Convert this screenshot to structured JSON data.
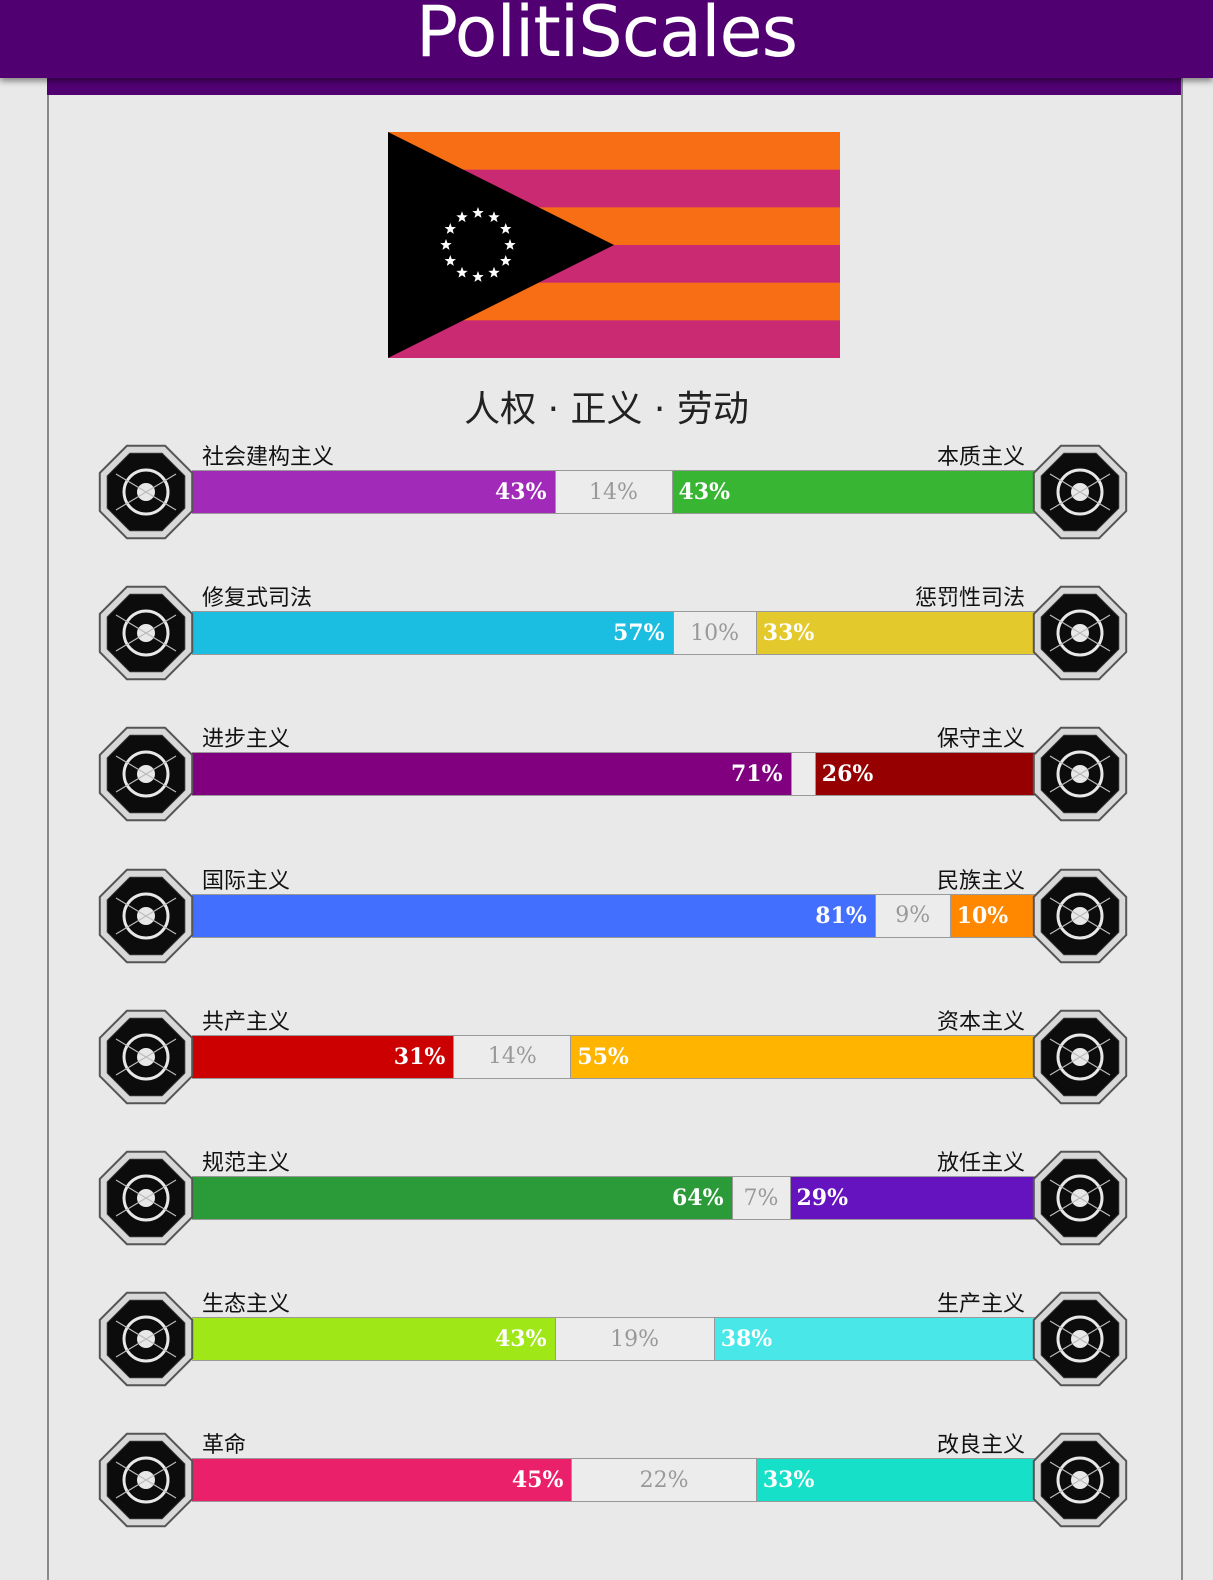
{
  "header": {
    "title": "PolitiScales"
  },
  "flag": {
    "stripe_colors": [
      "#f86e14",
      "#c92a71",
      "#f86e14",
      "#c92a71",
      "#f86e14",
      "#c92a71"
    ],
    "triangle_color": "#000000",
    "star_color": "#ffffff",
    "star_count": 12
  },
  "motto": "人权 · 正义 · 劳动",
  "axes": [
    {
      "left_label": "社会建构主义",
      "right_label": "本质主义",
      "left_pct": 43,
      "mid_pct": 14,
      "right_pct": 43,
      "left_text": "43%",
      "mid_text": "14%",
      "right_text": "43%",
      "left_color": "#a22ab9",
      "right_color": "#38b533",
      "left_icon": "eye-icon",
      "right_icon": "flower-icon"
    },
    {
      "left_label": "修复式司法",
      "right_label": "惩罚性司法",
      "left_pct": 57,
      "mid_pct": 10,
      "right_pct": 33,
      "left_text": "57%",
      "mid_text": "10%",
      "right_text": "33%",
      "left_color": "#1bbde0",
      "right_color": "#e4c92c",
      "left_icon": "handshake-icon",
      "right_icon": "prison-bars-icon"
    },
    {
      "left_label": "进步主义",
      "right_label": "保守主义",
      "left_pct": 71,
      "mid_pct": 3,
      "right_pct": 26,
      "left_text": "71%",
      "mid_text": "",
      "right_text": "26%",
      "left_color": "#800080",
      "right_color": "#960000",
      "left_icon": "comet-icon",
      "right_icon": "quill-icon"
    },
    {
      "left_label": "国际主义",
      "right_label": "民族主义",
      "left_pct": 81,
      "mid_pct": 9,
      "right_pct": 10,
      "left_text": "81%",
      "mid_text": "9%",
      "right_text": "10%",
      "left_color": "#436ffe",
      "right_color": "#ff8800",
      "left_icon": "globe-icon",
      "right_icon": "flag-icon"
    },
    {
      "left_label": "共产主义",
      "right_label": "资本主义",
      "left_pct": 31,
      "mid_pct": 14,
      "right_pct": 55,
      "left_text": "31%",
      "mid_text": "14%",
      "right_text": "55%",
      "left_color": "#cc0000",
      "right_color": "#ffb500",
      "left_icon": "hammer-sickle-icon",
      "right_icon": "money-bag-icon"
    },
    {
      "left_label": "规范主义",
      "right_label": "放任主义",
      "left_pct": 64,
      "mid_pct": 7,
      "right_pct": 29,
      "left_text": "64%",
      "mid_text": "7%",
      "right_text": "29%",
      "left_color": "#2b9b39",
      "right_color": "#6413be",
      "left_icon": "ruler-icon",
      "right_icon": "butterfly-icon"
    },
    {
      "left_label": "生态主义",
      "right_label": "生产主义",
      "left_pct": 43,
      "mid_pct": 19,
      "right_pct": 38,
      "left_text": "43%",
      "mid_text": "19%",
      "right_text": "38%",
      "left_color": "#a0e717",
      "right_color": "#4ae7e8",
      "left_icon": "sprout-icon",
      "right_icon": "gears-icon"
    },
    {
      "left_label": "革命",
      "right_label": "改良主义",
      "left_pct": 45,
      "mid_pct": 22,
      "right_pct": 33,
      "left_text": "45%",
      "mid_text": "22%",
      "right_text": "33%",
      "left_color": "#eb206b",
      "right_color": "#17e0c8",
      "left_icon": "fist-rose-icon",
      "right_icon": "ballot-icon"
    }
  ]
}
